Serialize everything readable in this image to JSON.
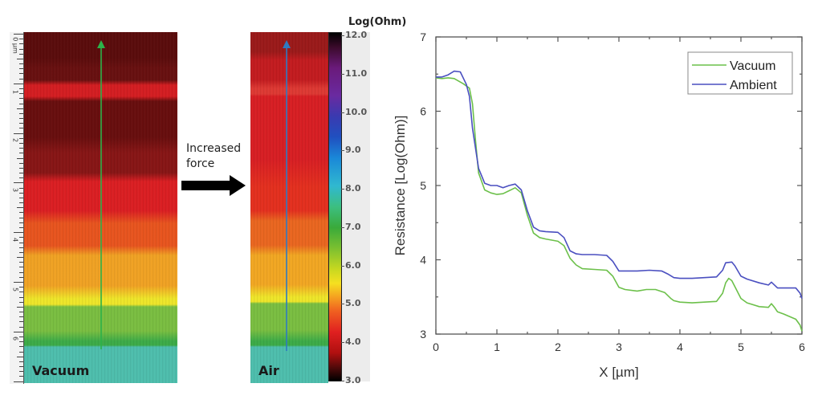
{
  "figure": {
    "left_map": {
      "label": "Vacuum",
      "ruler_unit": "µm",
      "ruler_labels": [
        "0 µm",
        "1",
        "2",
        "3",
        "4",
        "5",
        "6"
      ],
      "bands": [
        {
          "color": "#5c0c0c"
        },
        {
          "color": "#6a1010"
        },
        {
          "color": "#d81e22"
        },
        {
          "color": "#6a0e0e"
        },
        {
          "color": "#8a1616"
        },
        {
          "color": "#df1f23"
        },
        {
          "color": "#ec561f"
        },
        {
          "color": "#f5a524"
        },
        {
          "color": "#f3ea2a"
        },
        {
          "color": "#7cc242"
        },
        {
          "color": "#3dae49"
        },
        {
          "color": "#4fc2b0"
        }
      ],
      "arrow_color": "#2db34a"
    },
    "middle": {
      "text_line1": "Increased",
      "text_line2": "force"
    },
    "right_map": {
      "label": "Air",
      "bands": [
        {
          "color": "#9e1a1a"
        },
        {
          "color": "#c71c20"
        },
        {
          "color": "#e23a34"
        },
        {
          "color": "#dc1f24"
        },
        {
          "color": "#e8301f"
        },
        {
          "color": "#ee6820"
        },
        {
          "color": "#f6aa23"
        },
        {
          "color": "#f3ea2a"
        },
        {
          "color": "#7cc242"
        },
        {
          "color": "#3dae49"
        },
        {
          "color": "#4fc2b0"
        }
      ],
      "arrow_color": "#2e7bc2"
    },
    "colorbar": {
      "title": "Log(Ohm)",
      "ticks": [
        "12.0",
        "11.0",
        "10.0",
        "9.0",
        "8.0",
        "7.0",
        "6.0",
        "5.0",
        "4.0",
        "3.0"
      ]
    }
  },
  "chart_data": {
    "type": "line",
    "title": "",
    "xlabel": "X [µm]",
    "ylabel": "Resistance [Log(Ohm)]",
    "xlim": [
      0,
      6
    ],
    "ylim": [
      3,
      7
    ],
    "xticks": [
      "0",
      "1",
      "2",
      "3",
      "4",
      "5",
      "6"
    ],
    "yticks": [
      "3",
      "4",
      "5",
      "6",
      "7"
    ],
    "grid": false,
    "legend_position": "top-right",
    "series": [
      {
        "name": "Vacuum",
        "color": "#6cc04a",
        "x": [
          0,
          0.1,
          0.2,
          0.3,
          0.45,
          0.55,
          0.6,
          0.65,
          0.7,
          0.8,
          0.9,
          1.0,
          1.1,
          1.2,
          1.3,
          1.4,
          1.5,
          1.6,
          1.7,
          1.8,
          2.0,
          2.1,
          2.2,
          2.3,
          2.4,
          2.6,
          2.8,
          2.9,
          3.0,
          3.1,
          3.3,
          3.45,
          3.6,
          3.75,
          3.85,
          3.9,
          4.0,
          4.2,
          4.4,
          4.6,
          4.7,
          4.75,
          4.8,
          4.85,
          4.9,
          5.0,
          5.1,
          5.3,
          5.45,
          5.5,
          5.55,
          5.6,
          5.7,
          5.9,
          5.97,
          6.0
        ],
        "y": [
          6.45,
          6.44,
          6.45,
          6.44,
          6.37,
          6.31,
          6.1,
          5.6,
          5.17,
          4.94,
          4.9,
          4.88,
          4.89,
          4.93,
          4.97,
          4.9,
          4.6,
          4.36,
          4.3,
          4.28,
          4.25,
          4.19,
          4.02,
          3.93,
          3.88,
          3.87,
          3.86,
          3.78,
          3.63,
          3.6,
          3.58,
          3.6,
          3.6,
          3.56,
          3.48,
          3.45,
          3.43,
          3.42,
          3.43,
          3.44,
          3.55,
          3.69,
          3.75,
          3.72,
          3.64,
          3.48,
          3.42,
          3.37,
          3.36,
          3.41,
          3.36,
          3.3,
          3.27,
          3.2,
          3.12,
          3.04
        ]
      },
      {
        "name": "Ambient",
        "color": "#4a4fc0",
        "x": [
          0,
          0.1,
          0.2,
          0.3,
          0.4,
          0.5,
          0.55,
          0.6,
          0.65,
          0.7,
          0.8,
          0.9,
          1.0,
          1.1,
          1.2,
          1.3,
          1.4,
          1.5,
          1.6,
          1.7,
          1.8,
          2.0,
          2.1,
          2.2,
          2.3,
          2.4,
          2.6,
          2.8,
          2.9,
          3.0,
          3.1,
          3.3,
          3.5,
          3.7,
          3.8,
          3.9,
          4.0,
          4.2,
          4.4,
          4.6,
          4.7,
          4.75,
          4.85,
          4.9,
          5.0,
          5.1,
          5.3,
          5.45,
          5.5,
          5.55,
          5.6,
          5.75,
          5.9,
          5.97,
          6.0
        ],
        "y": [
          6.46,
          6.46,
          6.49,
          6.54,
          6.53,
          6.36,
          6.2,
          5.77,
          5.5,
          5.23,
          5.03,
          5.0,
          5.0,
          4.97,
          5.0,
          5.02,
          4.94,
          4.66,
          4.44,
          4.39,
          4.38,
          4.37,
          4.3,
          4.12,
          4.08,
          4.07,
          4.07,
          4.06,
          3.98,
          3.85,
          3.85,
          3.85,
          3.86,
          3.85,
          3.81,
          3.76,
          3.75,
          3.75,
          3.76,
          3.77,
          3.86,
          3.96,
          3.97,
          3.92,
          3.78,
          3.74,
          3.69,
          3.66,
          3.7,
          3.66,
          3.62,
          3.62,
          3.62,
          3.55,
          3.48
        ]
      }
    ]
  }
}
